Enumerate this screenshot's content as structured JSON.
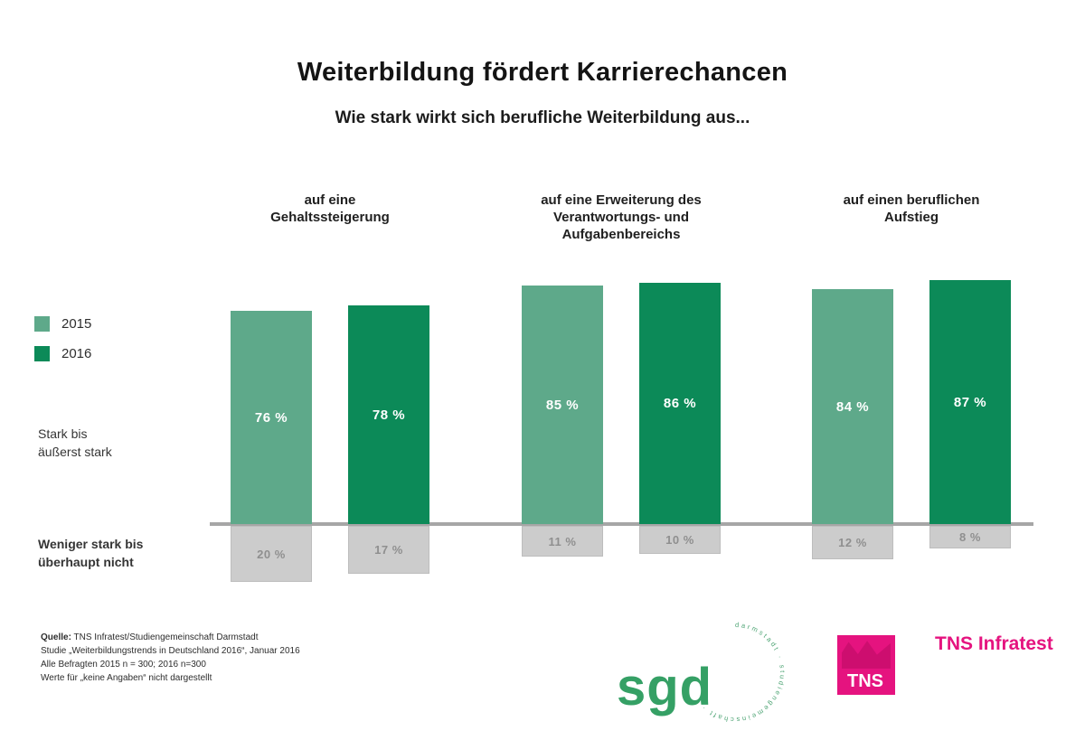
{
  "chart_data": {
    "type": "bar",
    "title": "Weiterbildung fördert Karrierechancen",
    "subtitle": "Wie stark wirkt sich berufliche Weiterbildung aus...",
    "unit": "%",
    "legend_position": "left",
    "grid": false,
    "axis": "none (values labeled on bars, answer-share in %, range 0-100)",
    "categories": [
      "auf eine\nGehaltssteigerung",
      "auf eine Erweiterung des\nVerantwortungs- und\nAufgabenbereichs",
      "auf einen beruflichen\nAufstieg"
    ],
    "series": [
      {
        "name": "2015",
        "color": "#5ea98a",
        "strong_values": [
          76,
          85,
          84
        ],
        "weak_values": [
          20,
          11,
          12
        ]
      },
      {
        "name": "2016",
        "color": "#0c8a58",
        "strong_values": [
          78,
          86,
          87
        ],
        "weak_values": [
          17,
          10,
          8
        ]
      }
    ],
    "row_groups": {
      "strong_label": "Stark bis\näußerst stark",
      "weak_label": "Weniger stark bis\nüberhaupt nicht"
    },
    "weak_bar_color": "#cccccc"
  },
  "footer": {
    "source_label": "Quelle:",
    "source_text": " TNS Infratest/Studiengemeinschaft Darmstadt",
    "study_line": "Studie „Weiterbildungstrends in Deutschland 2016“, Januar 2016",
    "sample_line": "Alle Befragten 2015 n = 300; 2016 n=300",
    "note_line": "Werte für „keine Angaben“ nicht dargestellt"
  },
  "logos": {
    "sgd": {
      "text": "sgd",
      "ring_text": "darmstadt · studiengemeinschaft ·",
      "color": "#35a065"
    },
    "tns": {
      "logo_text": "TNS",
      "wordmark": "TNS Infratest",
      "brand_color": "#e5137f"
    }
  }
}
